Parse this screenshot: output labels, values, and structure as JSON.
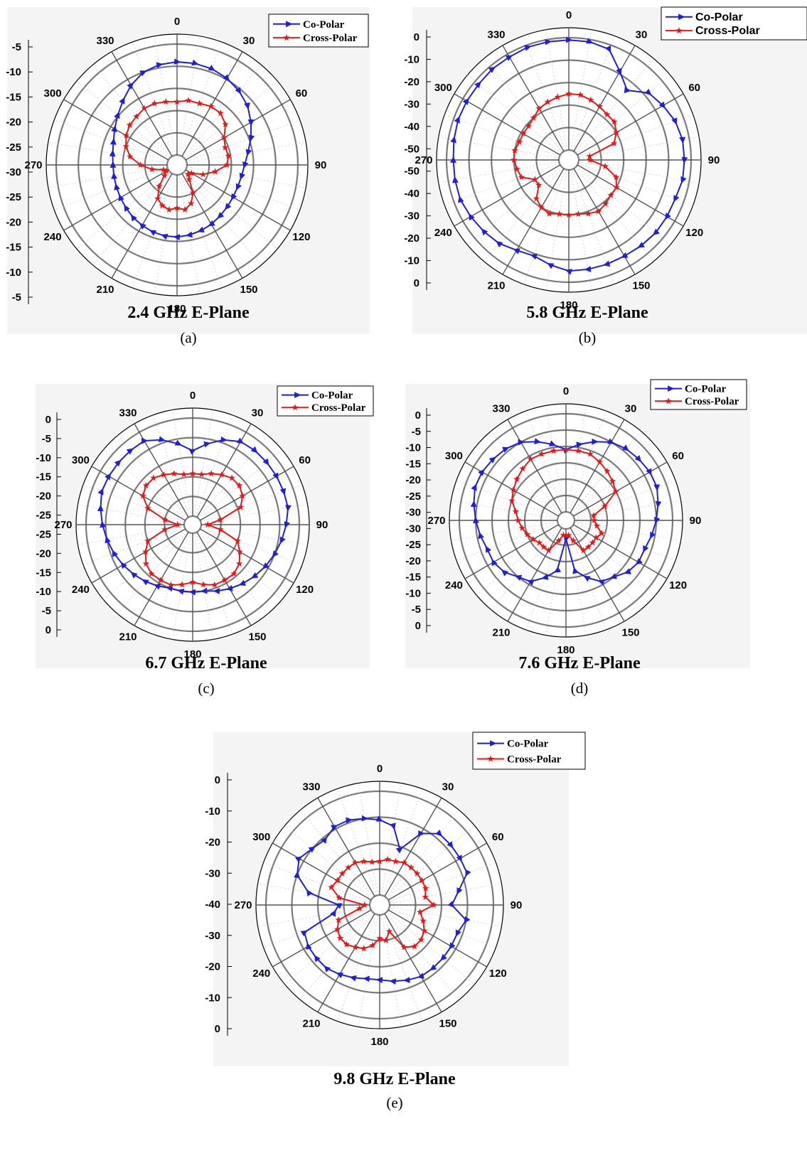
{
  "chart_data": [
    {
      "type": "polar-line",
      "title": "2.4 GHz E-Plane",
      "sublabel": "(a)",
      "angle_labels": [
        "0",
        "30",
        "60",
        "90",
        "120",
        "150",
        "180",
        "210",
        "240",
        "270",
        "300",
        "330"
      ],
      "radial_labels_top": [
        "-5",
        "-10",
        "-15",
        "-20",
        "-25",
        "-30"
      ],
      "radial_labels_bottom": [
        "-25",
        "-20",
        "-15",
        "-10",
        "-5"
      ],
      "rlim": [
        -30,
        -5
      ],
      "rings": 5,
      "legend_position": "top-right",
      "series": [
        {
          "name": "Co-Polar",
          "color": "#1f1fd6",
          "marker": "triangle",
          "angles": [
            0,
            10,
            20,
            30,
            40,
            50,
            60,
            70,
            80,
            90,
            100,
            110,
            120,
            130,
            140,
            150,
            160,
            170,
            180,
            190,
            200,
            210,
            220,
            230,
            240,
            250,
            260,
            270,
            280,
            290,
            300,
            310,
            320,
            330,
            340,
            350
          ],
          "values": [
            -9,
            -9,
            -9.2,
            -9.7,
            -10.5,
            -11.5,
            -13,
            -14.5,
            -16,
            -17,
            -17.5,
            -17.7,
            -17.7,
            -17.5,
            -17.2,
            -16.8,
            -16.5,
            -16.2,
            -16,
            -16,
            -16.2,
            -16.5,
            -16.8,
            -17.2,
            -17.5,
            -17.7,
            -17.8,
            -17.8,
            -17.5,
            -17,
            -16,
            -14.8,
            -13.3,
            -11.5,
            -10,
            -9.3
          ]
        },
        {
          "name": "Cross-Polar",
          "color": "#e01a1a",
          "marker": "star",
          "angles": [
            0,
            10,
            20,
            30,
            40,
            50,
            60,
            70,
            80,
            90,
            100,
            110,
            120,
            130,
            140,
            150,
            160,
            170,
            180,
            190,
            200,
            210,
            220,
            230,
            240,
            250,
            260,
            270,
            280,
            290,
            300,
            310,
            320,
            330,
            340,
            350
          ],
          "values": [
            -18,
            -17.5,
            -17.5,
            -17,
            -17,
            -18,
            -20,
            -20.7,
            -20.5,
            -21,
            -23.5,
            -26,
            -28.5,
            -29,
            -28,
            -25,
            -23,
            -22,
            -22.5,
            -22,
            -22.5,
            -23.5,
            -26,
            -28.5,
            -29.5,
            -29,
            -26.5,
            -24,
            -21.5,
            -20,
            -19,
            -18.3,
            -18,
            -17.5,
            -17.5,
            -17.8
          ]
        }
      ]
    },
    {
      "type": "polar-line",
      "title": "5.8 GHz E-Plane",
      "sublabel": "(b)",
      "angle_labels": [
        "0",
        "30",
        "60",
        "90",
        "120",
        "150",
        "180",
        "210",
        "240",
        "270",
        "300",
        "330"
      ],
      "radial_labels_top": [
        "0",
        "-10",
        "-20",
        "-30",
        "-40",
        "-50"
      ],
      "radial_labels_bottom": [
        "-50",
        "-40",
        "-30",
        "-20",
        "-10",
        "0"
      ],
      "rlim": [
        -50,
        0
      ],
      "rings": 5,
      "legend_position": "top-right",
      "series": [
        {
          "name": "Co-Polar",
          "color": "#1f1fd6",
          "marker": "triangle",
          "angles": [
            0,
            10,
            20,
            30,
            40,
            50,
            60,
            70,
            80,
            90,
            100,
            110,
            120,
            130,
            140,
            150,
            160,
            170,
            180,
            190,
            200,
            210,
            220,
            230,
            240,
            250,
            260,
            270,
            280,
            290,
            300,
            310,
            320,
            330,
            340,
            350
          ],
          "values": [
            -1,
            -1,
            -2,
            -9,
            -14,
            -8,
            -6,
            -4,
            -3,
            -3,
            -3,
            -4,
            -4,
            -4,
            -4.5,
            -5,
            -5,
            -5,
            -5,
            -7,
            -9,
            -8,
            -6,
            -5,
            -4,
            -3,
            -3,
            -3,
            -2.5,
            -2,
            -2,
            -2,
            -1.5,
            -1.5,
            -1,
            -1
          ]
        },
        {
          "name": "Cross-Polar",
          "color": "#e01a1a",
          "marker": "star",
          "angles": [
            0,
            10,
            20,
            30,
            40,
            50,
            60,
            70,
            80,
            90,
            100,
            110,
            120,
            130,
            140,
            150,
            160,
            170,
            180,
            190,
            200,
            210,
            220,
            230,
            240,
            250,
            260,
            270,
            280,
            290,
            300,
            310,
            320,
            330,
            340,
            350
          ],
          "values": [
            -25,
            -25,
            -26,
            -27,
            -28,
            -28,
            -30,
            -33,
            -45,
            -45,
            -38,
            -32,
            -30,
            -30,
            -29,
            -28,
            -29,
            -30,
            -30,
            -30,
            -29,
            -30,
            -32,
            -37,
            -37,
            -32,
            -31,
            -30,
            -30,
            -31,
            -31,
            -31,
            -30,
            -28,
            -27,
            -26
          ]
        }
      ]
    },
    {
      "type": "polar-line",
      "title": "6.7 GHz E-Plane",
      "sublabel": "(c)",
      "angle_labels": [
        "0",
        "30",
        "60",
        "90",
        "120",
        "150",
        "180",
        "210",
        "240",
        "270",
        "300",
        "330"
      ],
      "radial_labels_top": [
        "0",
        "-5",
        "-10",
        "-15",
        "-20",
        "-25"
      ],
      "radial_labels_bottom": [
        "-25",
        "-20",
        "-15",
        "-10",
        "-5",
        "0"
      ],
      "rlim": [
        -30,
        0
      ],
      "rings": 5,
      "legend_position": "top-right",
      "series": [
        {
          "name": "Co-Polar",
          "color": "#1f1fd6",
          "marker": "triangle",
          "angles": [
            0,
            10,
            20,
            30,
            40,
            50,
            60,
            70,
            80,
            90,
            100,
            110,
            120,
            130,
            140,
            150,
            160,
            170,
            180,
            190,
            200,
            210,
            220,
            230,
            240,
            250,
            260,
            270,
            280,
            290,
            300,
            310,
            320,
            330,
            340,
            350
          ],
          "values": [
            -10,
            -7.5,
            -5,
            -3.3,
            -3,
            -3,
            -3,
            -3,
            -3,
            -4,
            -5,
            -6,
            -7,
            -8,
            -9,
            -10,
            -11,
            -12,
            -12,
            -12,
            -12,
            -11,
            -10,
            -9,
            -8,
            -7,
            -6,
            -5,
            -4,
            -3,
            -3,
            -3,
            -3,
            -3,
            -5,
            -7.5
          ]
        },
        {
          "name": "Cross-Polar",
          "color": "#e01a1a",
          "marker": "star",
          "angles": [
            0,
            10,
            20,
            30,
            40,
            50,
            60,
            70,
            80,
            90,
            100,
            110,
            120,
            130,
            140,
            150,
            160,
            170,
            180,
            190,
            200,
            210,
            220,
            230,
            240,
            250,
            260,
            270,
            280,
            290,
            300,
            310,
            320,
            330,
            340,
            350
          ],
          "values": [
            -17,
            -17,
            -16,
            -15,
            -14,
            -14,
            -15,
            -17,
            -24,
            -28,
            -24,
            -18,
            -16,
            -14,
            -13,
            -13,
            -13,
            -14,
            -15,
            -14,
            -13,
            -13,
            -13,
            -14,
            -16,
            -18,
            -24,
            -28,
            -24,
            -18,
            -15,
            -14,
            -14,
            -15,
            -16,
            -17
          ]
        }
      ]
    },
    {
      "type": "polar-line",
      "title": "7.6 GHz E-Plane",
      "sublabel": "(d)",
      "angle_labels": [
        "0",
        "30",
        "60",
        "90",
        "120",
        "150",
        "180",
        "210",
        "240",
        "270",
        "300",
        "330"
      ],
      "radial_labels_top": [
        "0",
        "-5",
        "-10",
        "-15",
        "-20",
        "-25",
        "-30"
      ],
      "radial_labels_bottom": [
        "-30",
        "-25",
        "-20",
        "-15",
        "-10",
        "-5",
        "0"
      ],
      "rlim": [
        -30,
        0
      ],
      "rings": 6,
      "legend_position": "top-right",
      "series": [
        {
          "name": "Co-Polar",
          "color": "#1f1fd6",
          "marker": "triangle",
          "angles": [
            0,
            10,
            20,
            30,
            40,
            50,
            60,
            70,
            80,
            90,
            100,
            110,
            120,
            130,
            140,
            150,
            160,
            170,
            180,
            190,
            200,
            210,
            220,
            230,
            240,
            250,
            260,
            270,
            280,
            290,
            300,
            310,
            320,
            330,
            340,
            350
          ],
          "values": [
            -11,
            -9,
            -7,
            -5,
            -4,
            -3.5,
            -3,
            -3,
            -4,
            -5,
            -6,
            -7,
            -7,
            -8,
            -10,
            -11,
            -14,
            -17,
            -27,
            -17,
            -14,
            -11,
            -10,
            -8,
            -7,
            -7,
            -6,
            -5,
            -4,
            -3,
            -3,
            -3.5,
            -4,
            -5,
            -7,
            -9
          ]
        },
        {
          "name": "Cross-Polar",
          "color": "#e01a1a",
          "marker": "star",
          "angles": [
            0,
            10,
            20,
            30,
            40,
            50,
            60,
            70,
            80,
            90,
            100,
            110,
            120,
            130,
            140,
            150,
            160,
            170,
            180,
            190,
            200,
            210,
            220,
            230,
            240,
            250,
            260,
            270,
            280,
            290,
            300,
            310,
            320,
            330,
            340,
            350
          ],
          "values": [
            -11,
            -11,
            -11,
            -12,
            -13,
            -14,
            -15,
            -20,
            -24,
            -24,
            -23,
            -21,
            -22,
            -22,
            -22,
            -22,
            -26,
            -28,
            -28,
            -28,
            -26,
            -22,
            -22,
            -22,
            -21,
            -20,
            -19,
            -18,
            -17,
            -15,
            -14,
            -13,
            -12,
            -11,
            -11,
            -11
          ]
        }
      ]
    },
    {
      "type": "polar-line",
      "title": "9.8 GHz E-Plane",
      "sublabel": "(e)",
      "angle_labels": [
        "0",
        "30",
        "60",
        "90",
        "120",
        "150",
        "180",
        "210",
        "240",
        "270",
        "300",
        "330"
      ],
      "radial_labels_top": [
        "0",
        "-10",
        "-20",
        "-30",
        "-40"
      ],
      "radial_labels_bottom": [
        "-30",
        "-20",
        "-10",
        "0"
      ],
      "rlim": [
        -40,
        0
      ],
      "rings": 4,
      "legend_position": "top-right",
      "series": [
        {
          "name": "Co-Polar",
          "color": "#1f1fd6",
          "marker": "triangle",
          "angles": [
            0,
            10,
            20,
            30,
            40,
            50,
            60,
            70,
            80,
            90,
            100,
            110,
            120,
            130,
            140,
            150,
            160,
            170,
            180,
            190,
            200,
            210,
            220,
            230,
            240,
            250,
            260,
            270,
            280,
            290,
            300,
            310,
            320,
            330,
            340,
            350
          ],
          "values": [
            -11,
            -13,
            -21,
            -12,
            -8,
            -8,
            -8,
            -8,
            -13,
            -16,
            -10,
            -12,
            -12,
            -12,
            -12,
            -12,
            -13,
            -14,
            -15,
            -15,
            -14,
            -13,
            -12,
            -12,
            -12,
            -13,
            -26,
            -28,
            -16,
            -10,
            -8,
            -10,
            -11,
            -9,
            -9,
            -10
          ]
        },
        {
          "name": "Cross-Polar",
          "color": "#e01a1a",
          "marker": "star",
          "angles": [
            0,
            10,
            20,
            30,
            40,
            50,
            60,
            70,
            80,
            90,
            100,
            110,
            120,
            130,
            140,
            150,
            160,
            170,
            180,
            190,
            200,
            210,
            220,
            230,
            240,
            250,
            260,
            270,
            280,
            290,
            300,
            310,
            320,
            330,
            340,
            350
          ],
          "values": [
            -27,
            -26,
            -26,
            -25,
            -25,
            -25,
            -25,
            -25,
            -26,
            -23,
            -28,
            -26,
            -24,
            -23,
            -23,
            -25,
            -33,
            -30,
            -31,
            -28,
            -26,
            -25,
            -24,
            -24,
            -25,
            -27,
            -36,
            -38,
            -28,
            -24,
            -25,
            -25,
            -25,
            -25,
            -26,
            -27
          ]
        }
      ]
    }
  ]
}
